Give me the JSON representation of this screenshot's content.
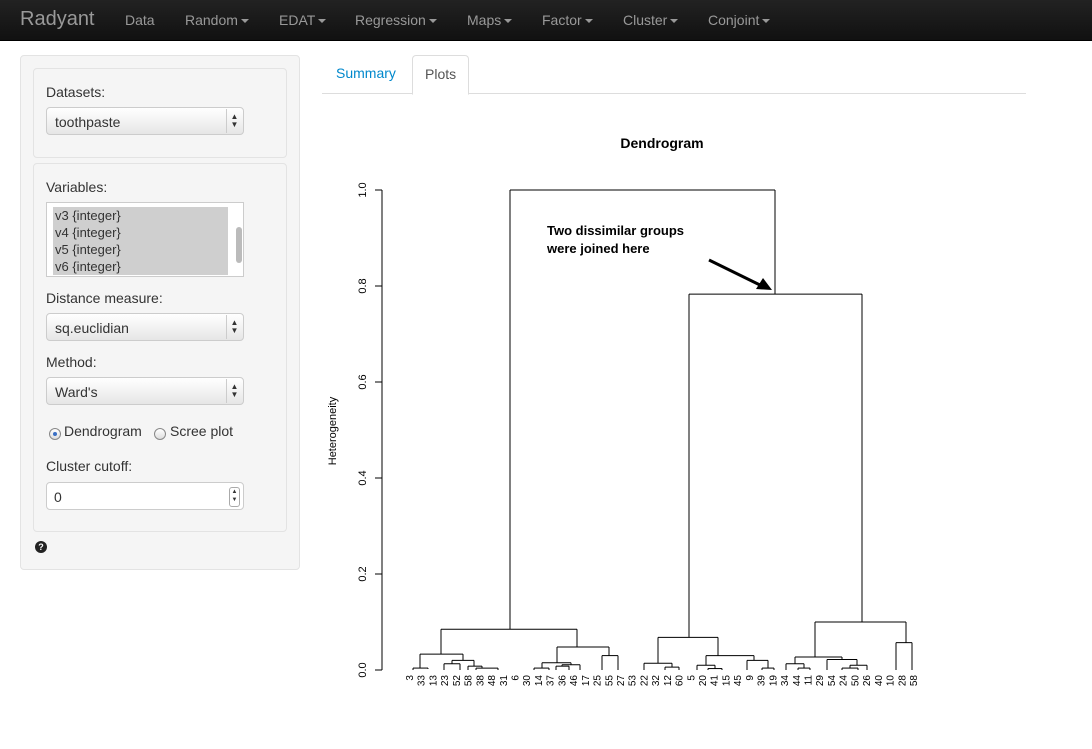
{
  "navbar": {
    "brand": "Radyant",
    "items": [
      "Data",
      "Random",
      "EDAT",
      "Regression",
      "Maps",
      "Factor",
      "Cluster",
      "Conjoint"
    ]
  },
  "sidebar": {
    "datasets_label": "Datasets:",
    "datasets_value": "toothpaste",
    "variables_label": "Variables:",
    "variables": [
      "v3 {integer}",
      "v4 {integer}",
      "v5 {integer}",
      "v6 {integer}"
    ],
    "distance_label": "Distance measure:",
    "distance_value": "sq.euclidian",
    "method_label": "Method:",
    "method_value": "Ward's",
    "plot_options": [
      "Dendrogram",
      "Scree plot"
    ],
    "plot_selected": "Dendrogram",
    "cutoff_label": "Cluster cutoff:",
    "cutoff_value": "0",
    "help_glyph": "?"
  },
  "tabs": {
    "items": [
      "Summary",
      "Plots"
    ],
    "active": "Plots"
  },
  "chart_data": {
    "type": "dendrogram",
    "title": "Dendrogram",
    "ylabel": "Heterogeneity",
    "xlabel": "",
    "ylim": [
      0,
      1.0
    ],
    "yticks": [
      "0.0",
      "0.2",
      "0.4",
      "0.6",
      "0.8",
      "1.0"
    ],
    "leaf_labels": [
      "3",
      "33",
      "13",
      "23",
      "52",
      "58",
      "38",
      "48",
      "31",
      "6",
      "30",
      "14",
      "37",
      "36",
      "46",
      "17",
      "25",
      "55",
      "27",
      "53",
      "22",
      "32",
      "12",
      "60",
      "5",
      "20",
      "41",
      "15",
      "45",
      "9",
      "39",
      "19",
      "34",
      "44",
      "11",
      "29",
      "54",
      "24",
      "50",
      "26",
      "40",
      "10",
      "28",
      "58"
    ],
    "merges": [
      {
        "name": "root",
        "height": 1.0
      },
      {
        "name": "right-group",
        "height": 0.783
      },
      {
        "name": "left-group",
        "height": 0.085
      },
      {
        "name": "right-a",
        "height": 0.068
      },
      {
        "name": "right-b",
        "height": 0.1
      }
    ],
    "annotation": {
      "line1": "Two dissimilar groups",
      "line2": "were joined here"
    }
  }
}
